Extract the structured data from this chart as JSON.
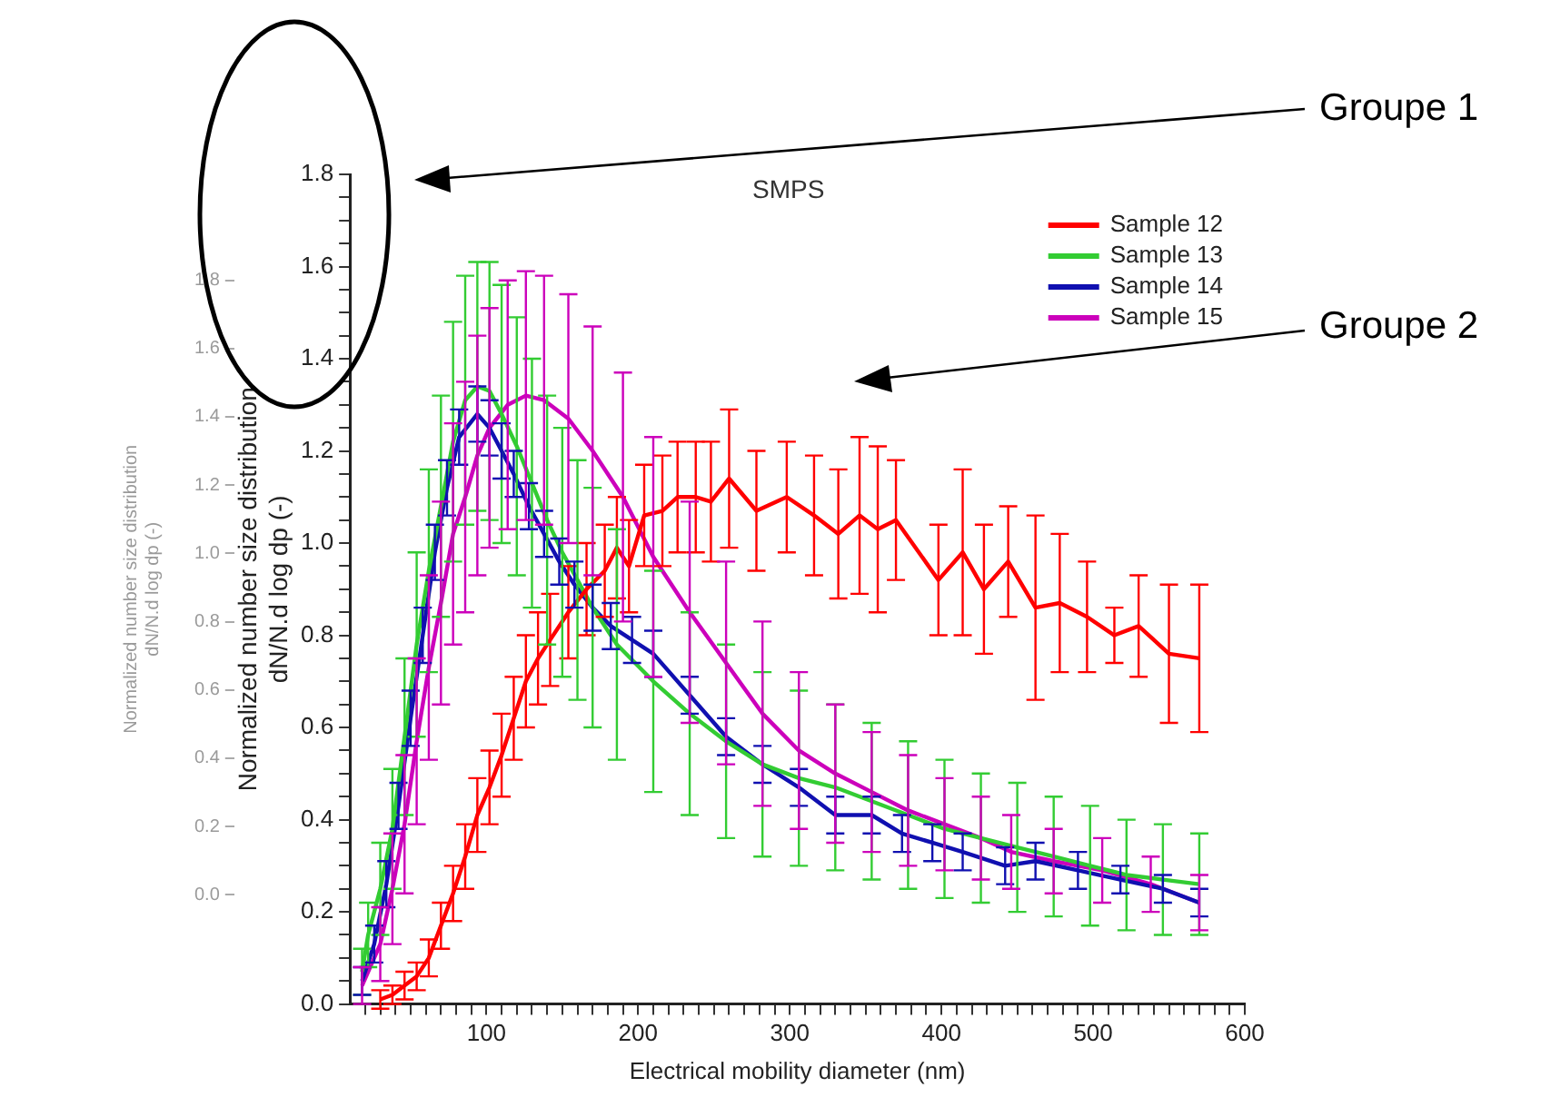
{
  "chart_data": {
    "type": "line",
    "title": "SMPS",
    "xlabel": "Electrical mobility diameter (nm)",
    "ylabel": "Normalized number size distribution\ndN/N.d log dp (-)",
    "y2label": "Normalized number size distribution\ndN/N.d log dp (-)",
    "annotations": [
      "Groupe 1",
      "Groupe 2"
    ],
    "xlim": [
      10,
      600
    ],
    "xticks": [
      {
        "value": 20,
        "label": null
      },
      {
        "value": 30,
        "label": null
      },
      {
        "value": 40,
        "label": null
      },
      {
        "value": 50,
        "label": null
      },
      {
        "value": 60,
        "label": null
      },
      {
        "value": 70,
        "label": null
      },
      {
        "value": 80,
        "label": null
      },
      {
        "value": 90,
        "label": null
      },
      100,
      {
        "value": 110,
        "label": null
      },
      {
        "value": 120,
        "label": null
      },
      {
        "value": 130,
        "label": null
      },
      {
        "value": 140,
        "label": null
      },
      {
        "value": 150,
        "label": null
      },
      {
        "value": 160,
        "label": null
      },
      {
        "value": 170,
        "label": null
      },
      {
        "value": 180,
        "label": null
      },
      {
        "value": 190,
        "label": null
      },
      200,
      {
        "value": 210,
        "label": null
      },
      {
        "value": 220,
        "label": null
      },
      {
        "value": 230,
        "label": null
      },
      {
        "value": 240,
        "label": null
      },
      {
        "value": 250,
        "label": null
      },
      {
        "value": 260,
        "label": null
      },
      {
        "value": 270,
        "label": null
      },
      {
        "value": 280,
        "label": null
      },
      {
        "value": 290,
        "label": null
      },
      300,
      {
        "value": 310,
        "label": null
      },
      {
        "value": 320,
        "label": null
      },
      {
        "value": 330,
        "label": null
      },
      {
        "value": 340,
        "label": null
      },
      {
        "value": 350,
        "label": null
      },
      {
        "value": 360,
        "label": null
      },
      {
        "value": 370,
        "label": null
      },
      {
        "value": 380,
        "label": null
      },
      {
        "value": 390,
        "label": null
      },
      400,
      {
        "value": 410,
        "label": null
      },
      {
        "value": 420,
        "label": null
      },
      {
        "value": 430,
        "label": null
      },
      {
        "value": 440,
        "label": null
      },
      {
        "value": 450,
        "label": null
      },
      {
        "value": 460,
        "label": null
      },
      {
        "value": 470,
        "label": null
      },
      {
        "value": 480,
        "label": null
      },
      {
        "value": 490,
        "label": null
      },
      500,
      {
        "value": 510,
        "label": null
      },
      {
        "value": 520,
        "label": null
      },
      {
        "value": 530,
        "label": null
      },
      {
        "value": 540,
        "label": null
      },
      {
        "value": 550,
        "label": null
      },
      {
        "value": 560,
        "label": null
      },
      {
        "value": 570,
        "label": null
      },
      {
        "value": 580,
        "label": null
      },
      {
        "value": 590,
        "label": null
      },
      600
    ],
    "ylim": [
      0,
      1.8
    ],
    "yticks": [
      {
        "value": 0,
        "label": "0.0"
      },
      {
        "value": 0.05,
        "label": null
      },
      {
        "value": 0.1,
        "label": null
      },
      {
        "value": 0.15,
        "label": null
      },
      0.2,
      {
        "value": 0.25,
        "label": null
      },
      {
        "value": 0.3,
        "label": null
      },
      {
        "value": 0.35,
        "label": null
      },
      0.4,
      {
        "value": 0.45,
        "label": null
      },
      {
        "value": 0.5,
        "label": null
      },
      {
        "value": 0.55,
        "label": null
      },
      0.6,
      {
        "value": 0.65,
        "label": null
      },
      {
        "value": 0.7,
        "label": null
      },
      {
        "value": 0.75,
        "label": null
      },
      0.8,
      {
        "value": 0.85,
        "label": null
      },
      {
        "value": 0.9,
        "label": null
      },
      {
        "value": 0.95,
        "label": null
      },
      {
        "value": 1,
        "label": "1.0"
      },
      {
        "value": 1.05,
        "label": null
      },
      {
        "value": 1.1,
        "label": null
      },
      {
        "value": 1.15,
        "label": null
      },
      1.2,
      {
        "value": 1.25,
        "label": null
      },
      {
        "value": 1.3,
        "label": null
      },
      {
        "value": 1.35,
        "label": null
      },
      1.4,
      {
        "value": 1.45,
        "label": null
      },
      {
        "value": 1.5,
        "label": null
      },
      {
        "value": 1.55,
        "label": null
      },
      1.6,
      {
        "value": 1.65,
        "label": null
      },
      {
        "value": 1.7,
        "label": null
      },
      {
        "value": 1.75,
        "label": null
      },
      1.8
    ],
    "y2lim": [
      -0.32,
      2.11
    ],
    "y2ticks": [
      {
        "value": 0,
        "label": "0.0"
      },
      0.2,
      0.4,
      0.6,
      0.8,
      {
        "value": 1,
        "label": "1.0"
      },
      1.2,
      1.4,
      1.6,
      1.8
    ],
    "grid": false,
    "legend": "top right",
    "marker": "none",
    "line_style": "solid",
    "series": [
      {
        "name": "Sample 12",
        "color": "#ff0000",
        "x": [
          30,
          38,
          46,
          54,
          62,
          70,
          78,
          86,
          94,
          102,
          110,
          118,
          126,
          134,
          142,
          154,
          166,
          178,
          186,
          194,
          204,
          216,
          226,
          238,
          248,
          260,
          278,
          298,
          316,
          332,
          346,
          358,
          370,
          398,
          414,
          428,
          444,
          462,
          478,
          496,
          514,
          530,
          550,
          570
        ],
        "values": [
          0.01,
          0.02,
          0.04,
          0.06,
          0.1,
          0.17,
          0.24,
          0.32,
          0.41,
          0.47,
          0.54,
          0.62,
          0.7,
          0.75,
          0.79,
          0.85,
          0.9,
          0.94,
          0.99,
          0.95,
          1.06,
          1.07,
          1.1,
          1.1,
          1.09,
          1.14,
          1.07,
          1.1,
          1.06,
          1.02,
          1.06,
          1.03,
          1.05,
          0.92,
          0.98,
          0.9,
          0.96,
          0.86,
          0.87,
          0.84,
          0.8,
          0.82,
          0.76,
          0.75
        ],
        "errors": [
          0.02,
          0.02,
          0.03,
          0.03,
          0.04,
          0.05,
          0.06,
          0.07,
          0.08,
          0.08,
          0.09,
          0.09,
          0.1,
          0.1,
          0.1,
          0.1,
          0.1,
          0.1,
          0.11,
          0.1,
          0.11,
          0.12,
          0.12,
          0.12,
          0.13,
          0.15,
          0.13,
          0.12,
          0.13,
          0.14,
          0.17,
          0.18,
          0.13,
          0.12,
          0.18,
          0.14,
          0.12,
          0.2,
          0.15,
          0.12,
          0.06,
          0.11,
          0.15,
          0.16
        ]
      },
      {
        "name": "Sample 13",
        "color": "#33cc33",
        "x": [
          18,
          22,
          30,
          38,
          46,
          54,
          62,
          70,
          78,
          86,
          94,
          102,
          110,
          120,
          130,
          140,
          150,
          160,
          170,
          186,
          210,
          234,
          258,
          282,
          306,
          330,
          354,
          378,
          402,
          426,
          450,
          474,
          498,
          522,
          546,
          570
        ],
        "values": [
          0.07,
          0.15,
          0.25,
          0.38,
          0.58,
          0.78,
          0.94,
          1.08,
          1.22,
          1.31,
          1.34,
          1.33,
          1.28,
          1.21,
          1.13,
          1.05,
          0.98,
          0.92,
          0.86,
          0.78,
          0.7,
          0.63,
          0.57,
          0.52,
          0.49,
          0.47,
          0.44,
          0.41,
          0.38,
          0.36,
          0.34,
          0.32,
          0.3,
          0.28,
          0.27,
          0.26
        ],
        "errors": [
          0.05,
          0.07,
          0.1,
          0.13,
          0.17,
          0.2,
          0.22,
          0.24,
          0.26,
          0.27,
          0.27,
          0.28,
          0.28,
          0.28,
          0.27,
          0.27,
          0.27,
          0.26,
          0.26,
          0.25,
          0.24,
          0.22,
          0.21,
          0.2,
          0.19,
          0.18,
          0.17,
          0.16,
          0.15,
          0.14,
          0.14,
          0.13,
          0.13,
          0.12,
          0.12,
          0.11
        ]
      },
      {
        "name": "Sample 14",
        "color": "#1010b0",
        "x": [
          18,
          26,
          34,
          42,
          50,
          58,
          66,
          74,
          82,
          94,
          102,
          110,
          118,
          128,
          138,
          148,
          158,
          170,
          182,
          196,
          210,
          234,
          258,
          282,
          306,
          330,
          354,
          374,
          394,
          414,
          442,
          462,
          490,
          518,
          546,
          570
        ],
        "values": [
          0.05,
          0.13,
          0.26,
          0.43,
          0.62,
          0.8,
          0.98,
          1.12,
          1.23,
          1.28,
          1.25,
          1.2,
          1.15,
          1.08,
          1.02,
          0.96,
          0.91,
          0.86,
          0.82,
          0.79,
          0.76,
          0.67,
          0.58,
          0.52,
          0.47,
          0.41,
          0.41,
          0.37,
          0.35,
          0.33,
          0.3,
          0.31,
          0.29,
          0.27,
          0.25,
          0.22
        ],
        "errors": [
          0.03,
          0.04,
          0.05,
          0.05,
          0.06,
          0.06,
          0.06,
          0.06,
          0.06,
          0.06,
          0.06,
          0.06,
          0.05,
          0.05,
          0.05,
          0.05,
          0.05,
          0.05,
          0.05,
          0.05,
          0.05,
          0.04,
          0.04,
          0.04,
          0.04,
          0.04,
          0.04,
          0.04,
          0.04,
          0.04,
          0.04,
          0.04,
          0.04,
          0.03,
          0.03,
          0.03
        ]
      },
      {
        "name": "Sample 15",
        "color": "#cc00bb",
        "x": [
          18,
          30,
          38,
          46,
          54,
          62,
          70,
          78,
          86,
          94,
          102,
          114,
          126,
          138,
          154,
          170,
          190,
          210,
          234,
          258,
          282,
          306,
          330,
          354,
          378,
          402,
          426,
          446,
          474,
          506,
          538,
          570
        ],
        "values": [
          0.04,
          0.13,
          0.25,
          0.39,
          0.57,
          0.73,
          0.87,
          1.02,
          1.1,
          1.19,
          1.25,
          1.3,
          1.32,
          1.31,
          1.27,
          1.2,
          1.1,
          0.97,
          0.85,
          0.74,
          0.63,
          0.55,
          0.5,
          0.46,
          0.42,
          0.39,
          0.36,
          0.33,
          0.31,
          0.29,
          0.26,
          0.22
        ],
        "errors": [
          0.04,
          0.08,
          0.12,
          0.15,
          0.18,
          0.2,
          0.22,
          0.24,
          0.25,
          0.26,
          0.26,
          0.27,
          0.27,
          0.27,
          0.27,
          0.27,
          0.27,
          0.26,
          0.24,
          0.22,
          0.2,
          0.17,
          0.15,
          0.13,
          0.12,
          0.1,
          0.09,
          0.08,
          0.07,
          0.07,
          0.06,
          0.06
        ]
      }
    ]
  }
}
